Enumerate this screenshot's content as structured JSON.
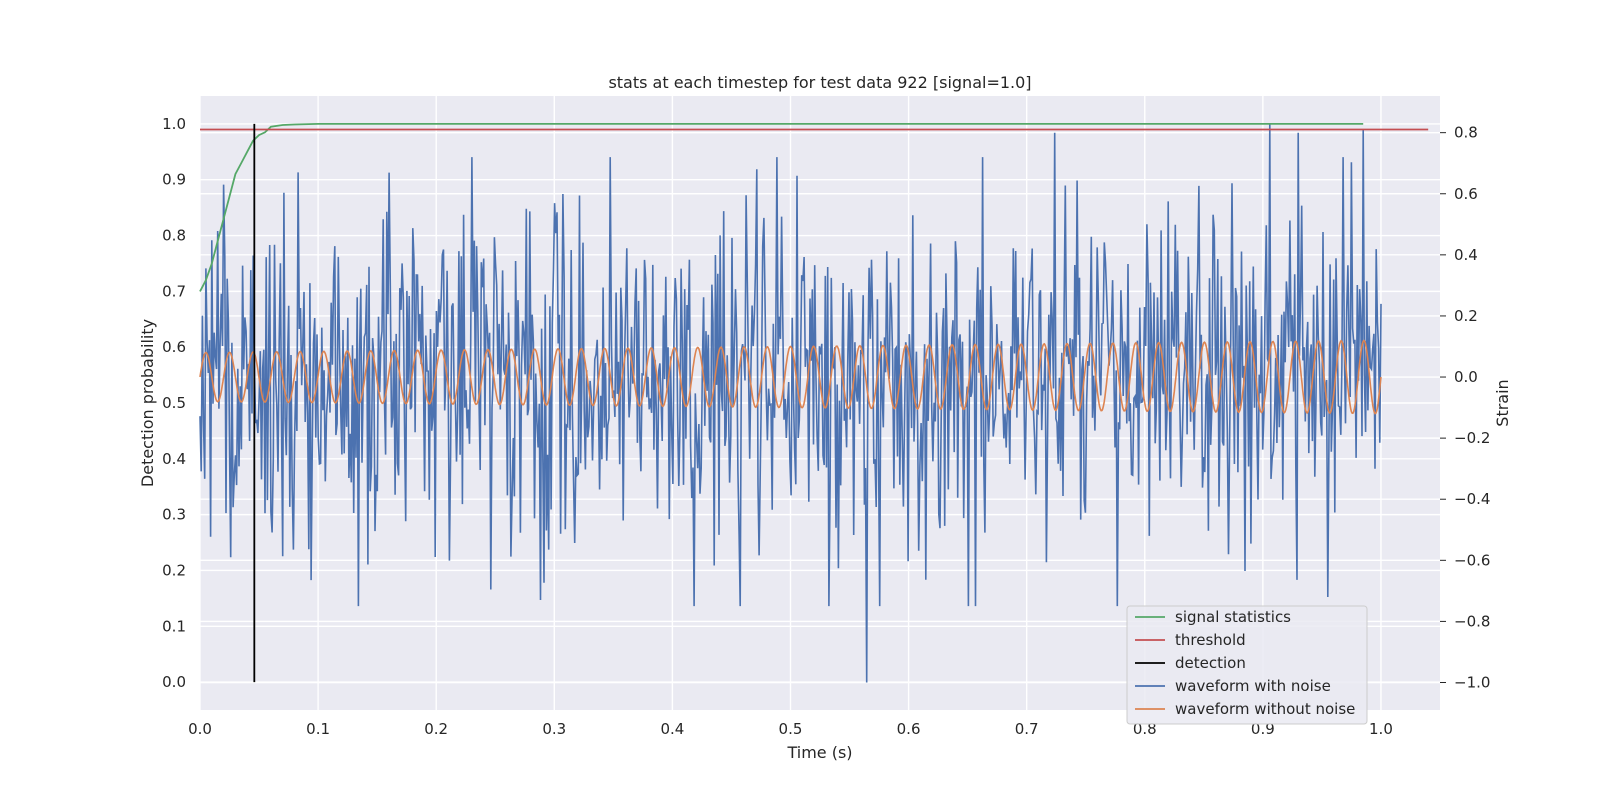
{
  "chart_data": {
    "type": "line",
    "title": "stats at each timestep for test data 922 [signal=1.0]",
    "xlabel": "Time (s)",
    "ylabel_left": "Detection probability",
    "ylabel_right": "Strain",
    "xlim": [
      0.0,
      1.05
    ],
    "ylim_left": [
      -0.05,
      1.05
    ],
    "ylim_right": [
      -1.09,
      0.92
    ],
    "x_ticks": [
      "0.0",
      "0.1",
      "0.2",
      "0.3",
      "0.4",
      "0.5",
      "0.6",
      "0.7",
      "0.8",
      "0.9",
      "1.0"
    ],
    "y_ticks_left": [
      "0.0",
      "0.1",
      "0.2",
      "0.3",
      "0.4",
      "0.5",
      "0.6",
      "0.7",
      "0.8",
      "0.9",
      "1.0"
    ],
    "y_ticks_right": [
      "−1.0",
      "−0.8",
      "−0.6",
      "−0.4",
      "−0.2",
      "0.0",
      "0.2",
      "0.4",
      "0.6",
      "0.8"
    ],
    "grid": true,
    "legend_position": "bottom-right",
    "legend": [
      {
        "label": "signal statistics",
        "color": "#55a868"
      },
      {
        "label": "threshold",
        "color": "#c44e52"
      },
      {
        "label": "detection",
        "color": "#000000"
      },
      {
        "label": "waveform with noise",
        "color": "#4c72b0"
      },
      {
        "label": "waveform without noise",
        "color": "#dd8452"
      }
    ],
    "signal_statistics": {
      "axis": "left",
      "x": [
        0.0,
        0.005,
        0.01,
        0.015,
        0.02,
        0.025,
        0.03,
        0.035,
        0.04,
        0.045,
        0.05,
        0.055,
        0.06,
        0.07,
        0.08,
        0.1,
        0.2,
        0.5,
        0.8,
        0.985
      ],
      "y": [
        0.7,
        0.72,
        0.75,
        0.79,
        0.83,
        0.87,
        0.91,
        0.93,
        0.95,
        0.97,
        0.98,
        0.985,
        0.995,
        0.998,
        0.999,
        1.0,
        1.0,
        1.0,
        1.0,
        1.0
      ]
    },
    "threshold": {
      "axis": "left",
      "value": 0.99,
      "x_range": [
        0.0,
        1.04
      ]
    },
    "detection": {
      "axis": "left",
      "x": 0.046,
      "y_range": [
        0.0,
        1.0
      ]
    },
    "waveform_with_noise": {
      "axis": "right",
      "description_values": "noisy strain sampled at ~1000 points in [0, 1.0]",
      "x_start": 0.0,
      "x_end": 1.0,
      "n_points": 1000,
      "amplitude_std": 0.28,
      "min": -1.0,
      "max": 0.83,
      "peaks": [
        {
          "x": 0.565,
          "y": -1.0
        },
        {
          "x": 0.906,
          "y": 0.83
        },
        {
          "x": 0.93,
          "y": 0.8
        },
        {
          "x": 0.985,
          "y": 0.81
        },
        {
          "x": 0.724,
          "y": 0.8
        },
        {
          "x": 0.955,
          "y": -0.72
        },
        {
          "x": 0.288,
          "y": -0.73
        },
        {
          "x": 0.083,
          "y": 0.67
        },
        {
          "x": 0.02,
          "y": 0.63
        }
      ]
    },
    "waveform_without_noise": {
      "axis": "right",
      "x_start": 0.0,
      "x_end": 1.0,
      "cycles": 50,
      "amplitude_start": 0.08,
      "amplitude_end": 0.12,
      "offset": -0.0
    }
  }
}
